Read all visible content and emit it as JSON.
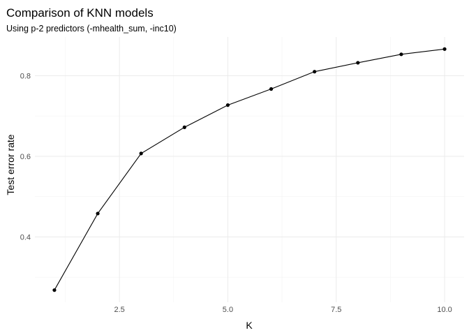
{
  "chart_data": {
    "type": "line",
    "title": "Comparison of KNN models",
    "subtitle": "Using p-2 predictors (-mhealth_sum, -inc10)",
    "xlabel": "K",
    "ylabel": "Test error rate",
    "x": [
      1,
      2,
      3,
      4,
      5,
      6,
      7,
      8,
      9,
      10
    ],
    "values": [
      0.268,
      0.458,
      0.607,
      0.672,
      0.727,
      0.767,
      0.81,
      0.832,
      0.853,
      0.866
    ],
    "xlim": [
      0.55,
      10.45
    ],
    "ylim": [
      0.238,
      0.896
    ],
    "x_ticks": [
      2.5,
      5.0,
      7.5,
      10.0
    ],
    "x_tick_labels": [
      "2.5",
      "5.0",
      "7.5",
      "10.0"
    ],
    "x_minor_ticks": [
      1.25,
      3.75,
      6.25,
      8.75
    ],
    "y_ticks": [
      0.4,
      0.6,
      0.8
    ],
    "y_tick_labels": [
      "0.4",
      "0.6",
      "0.8"
    ],
    "y_minor_ticks": [
      0.3,
      0.5,
      0.7
    ],
    "grid": true,
    "line_color": "#000000",
    "point_color": "#000000"
  }
}
